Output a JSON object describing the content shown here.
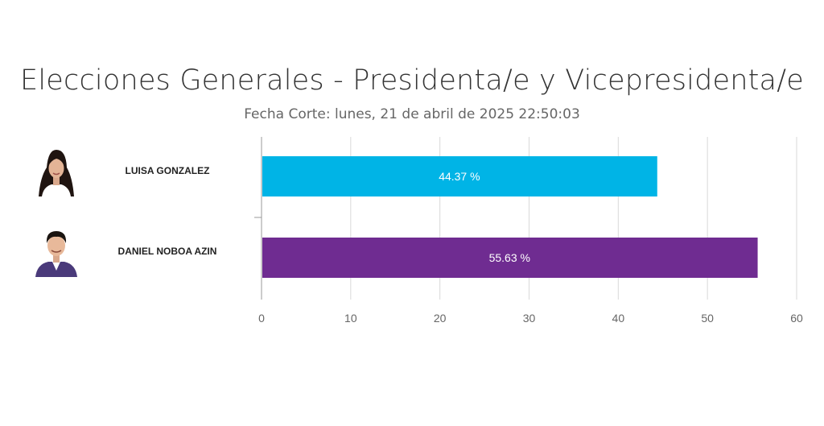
{
  "header": {
    "title": "Elecciones Generales - Presidenta/e y Vicepresidenta/e",
    "subtitle": "Fecha Corte: lunes, 21 de abril de 2025 22:50:03"
  },
  "candidates": [
    {
      "name": "LUISA GONZALEZ",
      "icon": "candidate-photo-luisa-gonzalez"
    },
    {
      "name": "DANIEL NOBOA AZIN",
      "icon": "candidate-photo-daniel-noboa-azin"
    }
  ],
  "chart_data": {
    "type": "bar",
    "orientation": "horizontal",
    "categories": [
      "LUISA GONZALEZ",
      "DANIEL NOBOA AZIN"
    ],
    "values": [
      44.37,
      55.63
    ],
    "data_labels": [
      "44.37 %",
      "55.63 %"
    ],
    "colors": [
      "#00b4e6",
      "#6f2c91"
    ],
    "xlim": [
      0,
      60
    ],
    "xticks": [
      0,
      10,
      20,
      30,
      40,
      50,
      60
    ],
    "grid": true
  }
}
